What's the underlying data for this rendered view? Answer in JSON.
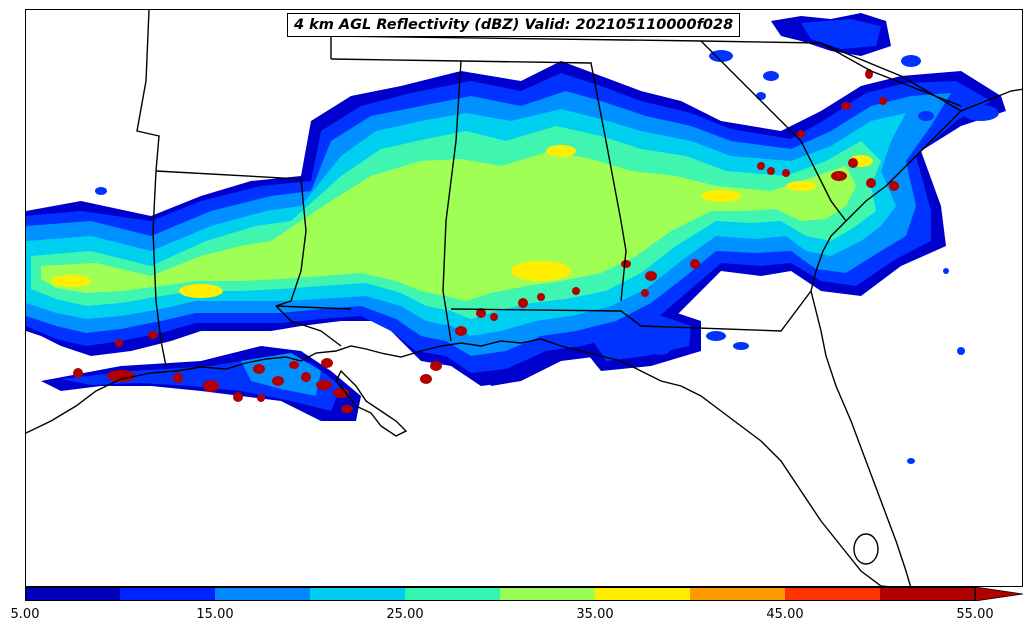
{
  "title": "4 km AGL Reflectivity (dBZ) Valid: 202105110000f028",
  "colorbar": {
    "tick_labels": [
      "5.00",
      "15.00",
      "25.00",
      "35.00",
      "45.00",
      "55.00"
    ],
    "colors": [
      "#0000bb",
      "#0022ff",
      "#0088ff",
      "#00ccf2",
      "#33f5b0",
      "#99ff55",
      "#ffee00",
      "#ff9900",
      "#ff3300",
      "#b20000"
    ],
    "extend": "max"
  },
  "map_colors": {
    "land": "#ffffff",
    "borders": "#000000"
  }
}
